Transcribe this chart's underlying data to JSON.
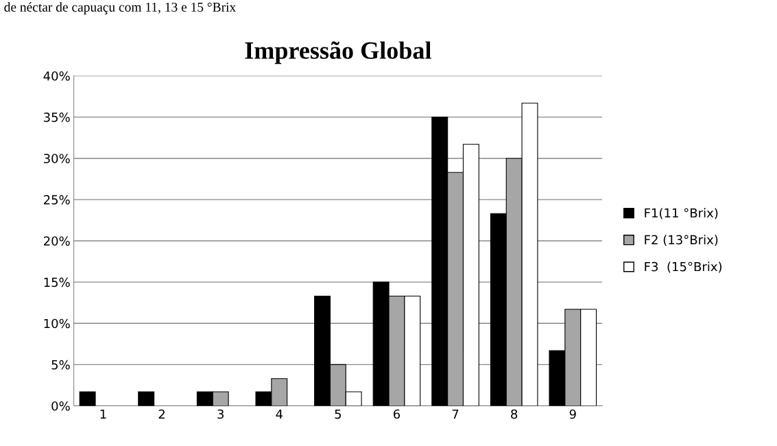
{
  "chart_data": {
    "type": "bar",
    "title": "Impressão Global",
    "annotations": [
      "de néctar de capuaçu com 11, 13 e 15 °Brix"
    ],
    "categories": [
      "1",
      "2",
      "3",
      "4",
      "5",
      "6",
      "7",
      "8",
      "9"
    ],
    "series": [
      {
        "name": "F1(11 °Brix)",
        "color": "#000000",
        "values": [
          1.7,
          1.7,
          1.7,
          1.7,
          13.3,
          15,
          35,
          23.3,
          6.7
        ]
      },
      {
        "name": "F2 (13°Brix)",
        "color": "#a6a6a6",
        "values": [
          null,
          null,
          1.7,
          3.3,
          5,
          13.3,
          28.3,
          30,
          11.7
        ]
      },
      {
        "name": "F3  (15°Brix)",
        "color": "#ffffff",
        "values": [
          null,
          null,
          null,
          null,
          1.7,
          13.3,
          31.7,
          36.7,
          11.7
        ]
      }
    ],
    "ylim": [
      0,
      40
    ],
    "yticks": [
      {
        "value": 0,
        "label": "0%"
      },
      {
        "value": 5,
        "label": "5%"
      },
      {
        "value": 10,
        "label": "10%"
      },
      {
        "value": 15,
        "label": "15%"
      },
      {
        "value": 20,
        "label": "20%"
      },
      {
        "value": 25,
        "label": "25%"
      },
      {
        "value": 30,
        "label": "30%"
      },
      {
        "value": 35,
        "label": "35%"
      },
      {
        "value": 40,
        "label": "40%"
      }
    ],
    "grid": "y",
    "legend": "right"
  }
}
